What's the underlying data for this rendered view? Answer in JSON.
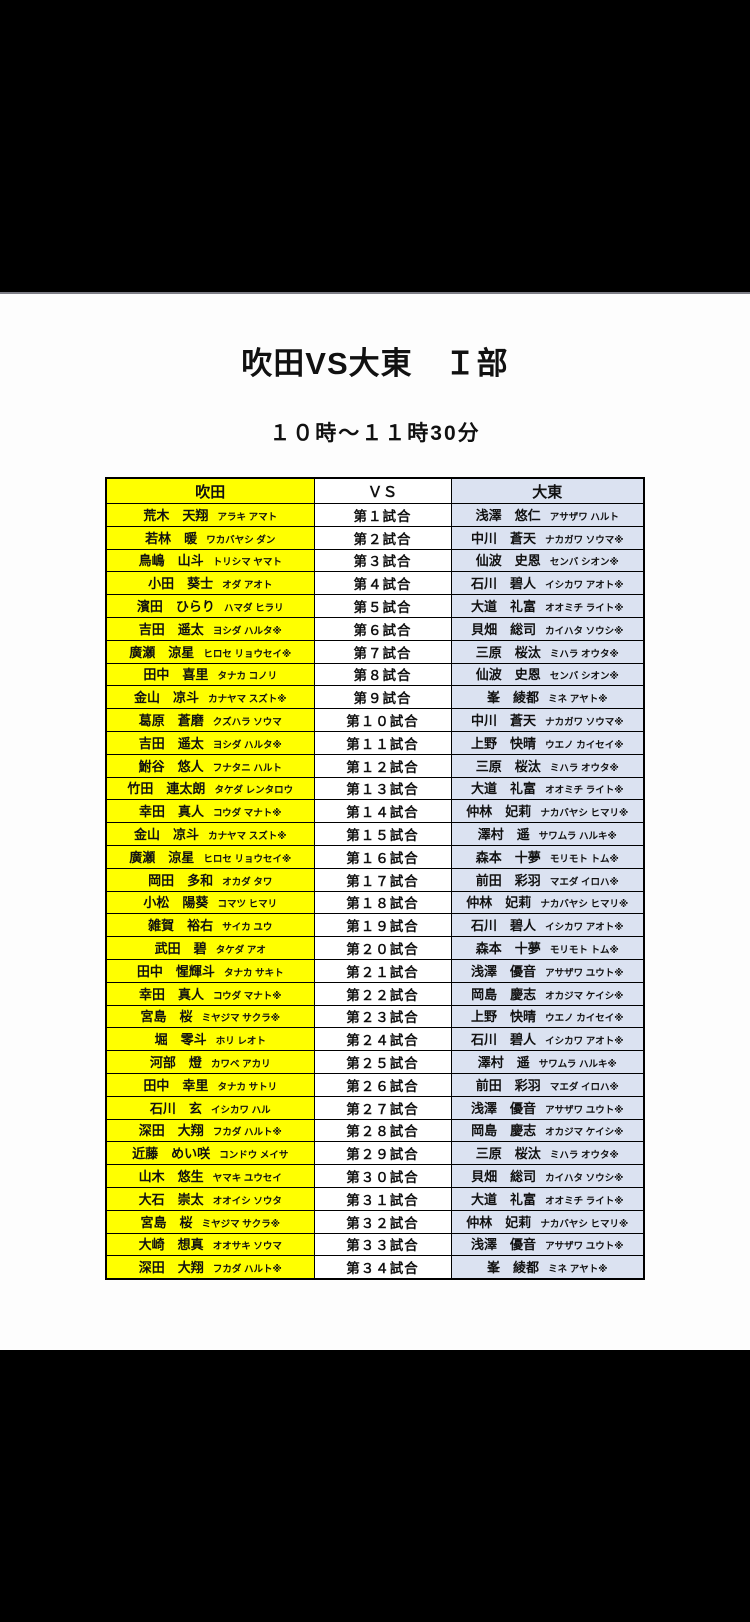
{
  "page": {
    "title": "吹田VS大東　Ｉ部",
    "time_range": "１０時～１１時30分"
  },
  "table": {
    "headers": {
      "left": "吹田",
      "center": "ＶＳ",
      "right": "大東"
    },
    "colors": {
      "suita_bg": "#ffff00",
      "daito_bg": "#dbe2f1",
      "border": "#000000"
    },
    "rows": [
      {
        "match": "第１試合",
        "left": {
          "name": "荒木　天翔",
          "kana": "アラキ アマト"
        },
        "right": {
          "name": "浅澤　悠仁",
          "kana": "アサザワ ハルト"
        }
      },
      {
        "match": "第２試合",
        "left": {
          "name": "若林　暖",
          "kana": "ワカバヤシ ダン"
        },
        "right": {
          "name": "中川　蒼天",
          "kana": "ナカガワ ソウマ※"
        }
      },
      {
        "match": "第３試合",
        "left": {
          "name": "鳥嶋　山斗",
          "kana": "トリシマ ヤマト"
        },
        "right": {
          "name": "仙波　史恩",
          "kana": "センバ シオン※"
        }
      },
      {
        "match": "第４試合",
        "left": {
          "name": "小田　葵士",
          "kana": "オダ アオト"
        },
        "right": {
          "name": "石川　碧人",
          "kana": "イシカワ アオト※"
        }
      },
      {
        "match": "第５試合",
        "left": {
          "name": "濱田　ひらり",
          "kana": "ハマダ ヒラリ"
        },
        "right": {
          "name": "大道　礼富",
          "kana": "オオミチ ライト※"
        }
      },
      {
        "match": "第６試合",
        "left": {
          "name": "吉田　遥太",
          "kana": "ヨシダ ハルタ※"
        },
        "right": {
          "name": "貝畑　総司",
          "kana": "カイハタ ソウシ※"
        }
      },
      {
        "match": "第７試合",
        "left": {
          "name": "廣瀬　涼星",
          "kana": "ヒロセ リョウセイ※"
        },
        "right": {
          "name": "三原　桜汰",
          "kana": "ミハラ オウタ※"
        }
      },
      {
        "match": "第８試合",
        "left": {
          "name": "田中　喜里",
          "kana": "タナカ コノリ"
        },
        "right": {
          "name": "仙波　史恩",
          "kana": "センバ シオン※"
        }
      },
      {
        "match": "第９試合",
        "left": {
          "name": "金山　凉斗",
          "kana": "カナヤマ スズト※"
        },
        "right": {
          "name": "峯　綾都",
          "kana": "ミネ アヤト※"
        }
      },
      {
        "match": "第１０試合",
        "left": {
          "name": "葛原　蒼磨",
          "kana": "クズハラ ソウマ"
        },
        "right": {
          "name": "中川　蒼天",
          "kana": "ナカガワ ソウマ※"
        }
      },
      {
        "match": "第１１試合",
        "left": {
          "name": "吉田　遥太",
          "kana": "ヨシダ ハルタ※"
        },
        "right": {
          "name": "上野　快晴",
          "kana": "ウエノ カイセイ※"
        }
      },
      {
        "match": "第１２試合",
        "left": {
          "name": "鮒谷　悠人",
          "kana": "フナタニ ハルト"
        },
        "right": {
          "name": "三原　桜汰",
          "kana": "ミハラ オウタ※"
        }
      },
      {
        "match": "第１３試合",
        "left": {
          "name": "竹田　連太朗",
          "kana": "タケダ レンタロウ"
        },
        "right": {
          "name": "大道　礼富",
          "kana": "オオミチ ライト※"
        }
      },
      {
        "match": "第１４試合",
        "left": {
          "name": "幸田　真人",
          "kana": "コウダ マナト※"
        },
        "right": {
          "name": "仲林　妃莉",
          "kana": "ナカバヤシ ヒマリ※"
        }
      },
      {
        "match": "第１５試合",
        "left": {
          "name": "金山　凉斗",
          "kana": "カナヤマ スズト※"
        },
        "right": {
          "name": "澤村　遥",
          "kana": "サワムラ ハルキ※"
        }
      },
      {
        "match": "第１６試合",
        "left": {
          "name": "廣瀬　涼星",
          "kana": "ヒロセ リョウセイ※"
        },
        "right": {
          "name": "森本　十夢",
          "kana": "モリモト トム※"
        }
      },
      {
        "match": "第１７試合",
        "left": {
          "name": "岡田　多和",
          "kana": "オカダ タワ"
        },
        "right": {
          "name": "前田　彩羽",
          "kana": "マエダ イロハ※"
        }
      },
      {
        "match": "第１８試合",
        "left": {
          "name": "小松　陽葵",
          "kana": "コマツ ヒマリ"
        },
        "right": {
          "name": "仲林　妃莉",
          "kana": "ナカバヤシ ヒマリ※"
        }
      },
      {
        "match": "第１９試合",
        "left": {
          "name": "雑賀　裕右",
          "kana": "サイカ ユウ"
        },
        "right": {
          "name": "石川　碧人",
          "kana": "イシカワ アオト※"
        }
      },
      {
        "match": "第２０試合",
        "left": {
          "name": "武田　碧",
          "kana": "タケダ アオ"
        },
        "right": {
          "name": "森本　十夢",
          "kana": "モリモト トム※"
        }
      },
      {
        "match": "第２１試合",
        "left": {
          "name": "田中　惺輝斗",
          "kana": "タナカ サキト"
        },
        "right": {
          "name": "浅澤　優音",
          "kana": "アサザワ ユウト※"
        }
      },
      {
        "match": "第２２試合",
        "left": {
          "name": "幸田　真人",
          "kana": "コウダ マナト※"
        },
        "right": {
          "name": "岡島　慶志",
          "kana": "オカジマ ケイシ※"
        }
      },
      {
        "match": "第２３試合",
        "left": {
          "name": "宮島　桜",
          "kana": "ミヤジマ サクラ※"
        },
        "right": {
          "name": "上野　快晴",
          "kana": "ウエノ カイセイ※"
        }
      },
      {
        "match": "第２４試合",
        "left": {
          "name": "堀　零斗",
          "kana": "ホリ レオト"
        },
        "right": {
          "name": "石川　碧人",
          "kana": "イシカワ アオト※"
        }
      },
      {
        "match": "第２５試合",
        "left": {
          "name": "河部　燈",
          "kana": "カワベ アカリ"
        },
        "right": {
          "name": "澤村　遥",
          "kana": "サワムラ ハルキ※"
        }
      },
      {
        "match": "第２６試合",
        "left": {
          "name": "田中　幸里",
          "kana": "タナカ サトリ"
        },
        "right": {
          "name": "前田　彩羽",
          "kana": "マエダ イロハ※"
        }
      },
      {
        "match": "第２７試合",
        "left": {
          "name": "石川　玄",
          "kana": "イシカワ ハル"
        },
        "right": {
          "name": "浅澤　優音",
          "kana": "アサザワ ユウト※"
        }
      },
      {
        "match": "第２８試合",
        "left": {
          "name": "深田　大翔",
          "kana": "フカダ ハルト※"
        },
        "right": {
          "name": "岡島　慶志",
          "kana": "オカジマ ケイシ※"
        }
      },
      {
        "match": "第２９試合",
        "left": {
          "name": "近藤　めい咲",
          "kana": "コンドウ メイサ"
        },
        "right": {
          "name": "三原　桜汰",
          "kana": "ミハラ オウタ※"
        }
      },
      {
        "match": "第３０試合",
        "left": {
          "name": "山木　悠生",
          "kana": "ヤマキ ユウセイ"
        },
        "right": {
          "name": "貝畑　総司",
          "kana": "カイハタ ソウシ※"
        }
      },
      {
        "match": "第３１試合",
        "left": {
          "name": "大石　崇太",
          "kana": "オオイシ ソウタ"
        },
        "right": {
          "name": "大道　礼富",
          "kana": "オオミチ ライト※"
        }
      },
      {
        "match": "第３２試合",
        "left": {
          "name": "宮島　桜",
          "kana": "ミヤジマ サクラ※"
        },
        "right": {
          "name": "仲林　妃莉",
          "kana": "ナカバヤシ ヒマリ※"
        }
      },
      {
        "match": "第３３試合",
        "left": {
          "name": "大崎　想真",
          "kana": "オオサキ ソウマ"
        },
        "right": {
          "name": "浅澤　優音",
          "kana": "アサザワ ユウト※"
        }
      },
      {
        "match": "第３４試合",
        "left": {
          "name": "深田　大翔",
          "kana": "フカダ ハルト※"
        },
        "right": {
          "name": "峯　綾都",
          "kana": "ミネ アヤト※"
        }
      }
    ]
  }
}
